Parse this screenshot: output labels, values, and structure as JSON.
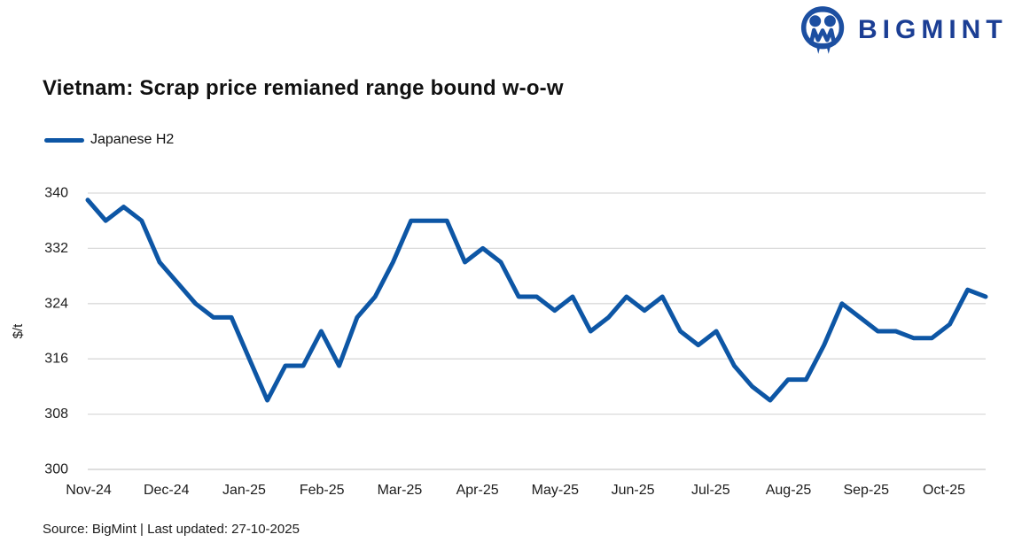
{
  "logo": {
    "text": "BIGMINT",
    "icon": "bigmint-people-icon",
    "color": "#1B3E94",
    "icon_color": "#1C4FA1"
  },
  "header": {
    "title": "Vietnam: Scrap price remianed range bound w-o-w"
  },
  "legend": {
    "label": "Japanese H2"
  },
  "footer": {
    "source": "Source: BigMint | Last updated: 27-10-2025"
  },
  "colors": {
    "line": "#0D56A5",
    "gridline": "#D9D9D9",
    "axis_line": "#C9C9C9",
    "tick_text": "#1c1c1c"
  },
  "chart_data": {
    "type": "line",
    "title": "Vietnam: Scrap price remianed range bound w-o-w",
    "xlabel": "",
    "ylabel": "$/t",
    "ylim": [
      300,
      340
    ],
    "y_ticks": [
      340,
      332,
      324,
      316,
      308,
      300
    ],
    "grid": "horizontal",
    "legend_position": "top-left",
    "categories": [
      "Nov-24",
      "Dec-24",
      "Jan-25",
      "Feb-25",
      "Mar-25",
      "Apr-25",
      "May-25",
      "Jun-25",
      "Jul-25",
      "Aug-25",
      "Sep-25",
      "Oct-25"
    ],
    "x_unit": "weekly",
    "series": [
      {
        "name": "Japanese H2",
        "color": "#0D56A5",
        "values": [
          339,
          336,
          338,
          336,
          330,
          327,
          324,
          322,
          322,
          316,
          310,
          315,
          315,
          320,
          315,
          322,
          325,
          330,
          336,
          336,
          336,
          330,
          332,
          330,
          325,
          325,
          323,
          325,
          320,
          322,
          325,
          323,
          325,
          320,
          318,
          320,
          315,
          312,
          310,
          313,
          313,
          318,
          324,
          322,
          320,
          320,
          319,
          319,
          321,
          326,
          325
        ]
      }
    ]
  }
}
